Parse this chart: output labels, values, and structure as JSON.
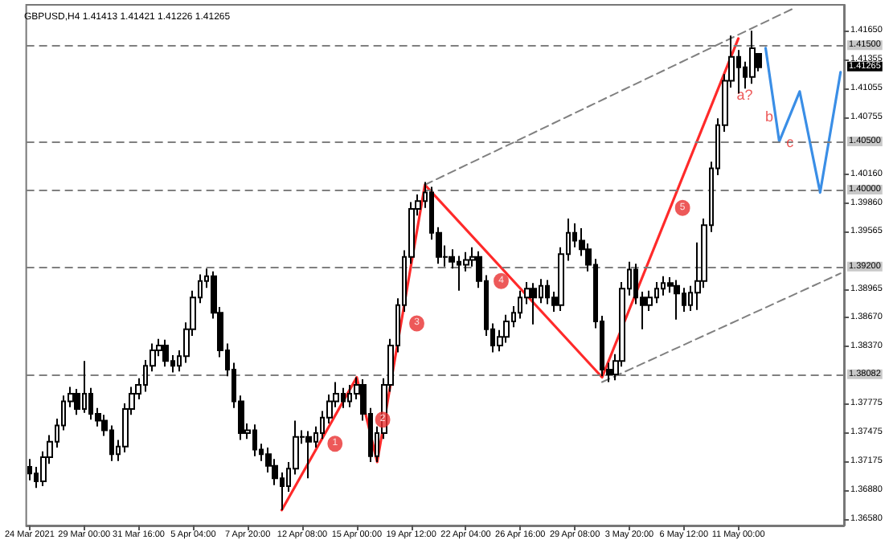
{
  "chart_data": {
    "type": "candlestick",
    "title": "GBPUSD,H4 1.41413 1.41421 1.41226 1.41265",
    "categories": [
      "24 Mar 2021",
      null,
      null,
      null,
      null,
      null,
      null,
      null,
      "29 Mar 00:00",
      null,
      null,
      null,
      null,
      null,
      null,
      null,
      "31 Mar 16:00",
      null,
      null,
      null,
      null,
      null,
      null,
      null,
      "5 Apr 04:00",
      null,
      null,
      null,
      null,
      null,
      null,
      null,
      "7 Apr 20:00",
      null,
      null,
      null,
      null,
      null,
      null,
      null,
      "12 Apr 08:00",
      null,
      null,
      null,
      null,
      null,
      null,
      null,
      "15 Apr 00:00",
      null,
      null,
      null,
      null,
      null,
      null,
      null,
      "19 Apr 12:00",
      null,
      null,
      null,
      null,
      null,
      null,
      null,
      "22 Apr 04:00",
      null,
      null,
      null,
      null,
      null,
      null,
      null,
      "26 Apr 16:00",
      null,
      null,
      null,
      null,
      null,
      null,
      null,
      "29 Apr 08:00",
      null,
      null,
      null,
      null,
      null,
      null,
      null,
      "3 May 20:00",
      null,
      null,
      null,
      null,
      null,
      null,
      null,
      "6 May 12:00",
      null,
      null,
      null,
      null,
      null,
      null,
      null,
      "11 May 00:00",
      null,
      null,
      null,
      null,
      null,
      null,
      null,
      null,
      null,
      null,
      null,
      null,
      null,
      null,
      null
    ],
    "ohlc": [
      [
        1.3712,
        1.372,
        1.3698,
        1.3705
      ],
      [
        1.3705,
        1.3712,
        1.369,
        1.3697
      ],
      [
        1.3697,
        1.3728,
        1.3692,
        1.3722
      ],
      [
        1.3722,
        1.3745,
        1.3715,
        1.3738
      ],
      [
        1.3738,
        1.3762,
        1.3732,
        1.3755
      ],
      [
        1.3755,
        1.3786,
        1.375,
        1.378
      ],
      [
        1.378,
        1.3795,
        1.3774,
        1.3788
      ],
      [
        1.3788,
        1.3793,
        1.3766,
        1.3772
      ],
      [
        1.3772,
        1.3822,
        1.3768,
        1.3788
      ],
      [
        1.3788,
        1.3794,
        1.3761,
        1.3767
      ],
      [
        1.3767,
        1.3773,
        1.3754,
        1.376
      ],
      [
        1.376,
        1.3766,
        1.3744,
        1.375
      ],
      [
        1.375,
        1.3755,
        1.3718,
        1.3725
      ],
      [
        1.3725,
        1.374,
        1.3718,
        1.3733
      ],
      [
        1.3733,
        1.3778,
        1.3727,
        1.3772
      ],
      [
        1.3772,
        1.3795,
        1.3766,
        1.3788
      ],
      [
        1.3788,
        1.3804,
        1.3782,
        1.3797
      ],
      [
        1.3797,
        1.3823,
        1.379,
        1.3817
      ],
      [
        1.3817,
        1.384,
        1.3811,
        1.3833
      ],
      [
        1.3833,
        1.3845,
        1.3827,
        1.3838
      ],
      [
        1.3838,
        1.3844,
        1.3816,
        1.3822
      ],
      [
        1.3822,
        1.3828,
        1.381,
        1.3817
      ],
      [
        1.3817,
        1.3833,
        1.3811,
        1.3827
      ],
      [
        1.3827,
        1.3862,
        1.382,
        1.3855
      ],
      [
        1.3855,
        1.3895,
        1.3848,
        1.3888
      ],
      [
        1.3888,
        1.3912,
        1.3882,
        1.3905
      ],
      [
        1.3905,
        1.3918,
        1.3898,
        1.391
      ],
      [
        1.391,
        1.3915,
        1.3866,
        1.3872
      ],
      [
        1.3872,
        1.3878,
        1.3826,
        1.3833
      ],
      [
        1.3833,
        1.384,
        1.3806,
        1.3813
      ],
      [
        1.3813,
        1.382,
        1.3773,
        1.378
      ],
      [
        1.378,
        1.3786,
        1.374,
        1.3747
      ],
      [
        1.3747,
        1.3757,
        1.3741,
        1.375
      ],
      [
        1.375,
        1.3756,
        1.3723,
        1.373
      ],
      [
        1.373,
        1.3736,
        1.3718,
        1.3725
      ],
      [
        1.3725,
        1.3732,
        1.3706,
        1.3713
      ],
      [
        1.3713,
        1.372,
        1.3693,
        1.37
      ],
      [
        1.37,
        1.3706,
        1.3667,
        1.3692
      ],
      [
        1.3692,
        1.3717,
        1.3686,
        1.371
      ],
      [
        1.371,
        1.376,
        1.3704,
        1.3743
      ],
      [
        1.3743,
        1.375,
        1.3736,
        1.3743
      ],
      [
        1.3743,
        1.3749,
        1.37,
        1.3738
      ],
      [
        1.3738,
        1.3754,
        1.3732,
        1.3747
      ],
      [
        1.3747,
        1.377,
        1.3741,
        1.3763
      ],
      [
        1.3763,
        1.3787,
        1.3757,
        1.378
      ],
      [
        1.378,
        1.38,
        1.3774,
        1.3788
      ],
      [
        1.3788,
        1.3794,
        1.3773,
        1.378
      ],
      [
        1.378,
        1.3797,
        1.3774,
        1.3788
      ],
      [
        1.3788,
        1.3805,
        1.3782,
        1.3797
      ],
      [
        1.3797,
        1.3803,
        1.376,
        1.3767
      ],
      [
        1.3767,
        1.3773,
        1.3717,
        1.3723
      ],
      [
        1.3723,
        1.3754,
        1.3717,
        1.3747
      ],
      [
        1.3747,
        1.3804,
        1.3741,
        1.3797
      ],
      [
        1.3797,
        1.3845,
        1.379,
        1.3838
      ],
      [
        1.3838,
        1.3887,
        1.3831,
        1.388
      ],
      [
        1.388,
        1.3937,
        1.3873,
        1.393
      ],
      [
        1.393,
        1.3987,
        1.3923,
        1.398
      ],
      [
        1.398,
        1.3995,
        1.3973,
        1.3988
      ],
      [
        1.3988,
        1.4008,
        1.3981,
        1.3997
      ],
      [
        1.3997,
        1.4003,
        1.3948,
        1.3955
      ],
      [
        1.3955,
        1.3961,
        1.3923,
        1.393
      ],
      [
        1.393,
        1.3942,
        1.392,
        1.393
      ],
      [
        1.393,
        1.3938,
        1.3918,
        1.3925
      ],
      [
        1.3925,
        1.3931,
        1.3895,
        1.3922
      ],
      [
        1.3922,
        1.3935,
        1.3915,
        1.3927
      ],
      [
        1.3927,
        1.394,
        1.392,
        1.393
      ],
      [
        1.393,
        1.3936,
        1.3898,
        1.3905
      ],
      [
        1.3905,
        1.3911,
        1.3848,
        1.3855
      ],
      [
        1.3855,
        1.3861,
        1.3831,
        1.3838
      ],
      [
        1.3838,
        1.3854,
        1.3832,
        1.3847
      ],
      [
        1.3847,
        1.387,
        1.3841,
        1.3863
      ],
      [
        1.3863,
        1.3879,
        1.3857,
        1.3872
      ],
      [
        1.3872,
        1.3895,
        1.3866,
        1.3888
      ],
      [
        1.3888,
        1.3904,
        1.3881,
        1.3897
      ],
      [
        1.3897,
        1.3903,
        1.386,
        1.3888
      ],
      [
        1.3888,
        1.3907,
        1.3882,
        1.39
      ],
      [
        1.39,
        1.3906,
        1.3881,
        1.3888
      ],
      [
        1.3888,
        1.3894,
        1.3873,
        1.388
      ],
      [
        1.388,
        1.394,
        1.3874,
        1.3933
      ],
      [
        1.3933,
        1.397,
        1.3926,
        1.3955
      ],
      [
        1.3955,
        1.3965,
        1.394,
        1.3947
      ],
      [
        1.3947,
        1.396,
        1.3931,
        1.3938
      ],
      [
        1.3938,
        1.3944,
        1.3915,
        1.3922
      ],
      [
        1.3922,
        1.3928,
        1.3856,
        1.3863
      ],
      [
        1.3863,
        1.3869,
        1.3806,
        1.3813
      ],
      [
        1.3813,
        1.382,
        1.38,
        1.3808
      ],
      [
        1.3808,
        1.3829,
        1.3802,
        1.3822
      ],
      [
        1.3822,
        1.3904,
        1.3816,
        1.3897
      ],
      [
        1.3897,
        1.3925,
        1.389,
        1.3917
      ],
      [
        1.3917,
        1.3923,
        1.3881,
        1.3888
      ],
      [
        1.3888,
        1.3894,
        1.3855,
        1.388
      ],
      [
        1.388,
        1.3895,
        1.3874,
        1.3888
      ],
      [
        1.3888,
        1.3904,
        1.3882,
        1.3897
      ],
      [
        1.3897,
        1.391,
        1.389,
        1.3903
      ],
      [
        1.3903,
        1.3909,
        1.3893,
        1.39
      ],
      [
        1.39,
        1.3906,
        1.3865,
        1.3892
      ],
      [
        1.3892,
        1.3898,
        1.3873,
        1.388
      ],
      [
        1.388,
        1.39,
        1.3874,
        1.3893
      ],
      [
        1.3893,
        1.3945,
        1.3875,
        1.3905
      ],
      [
        1.3905,
        1.397,
        1.3898,
        1.3963
      ],
      [
        1.3963,
        1.4029,
        1.3956,
        1.4022
      ],
      [
        1.4022,
        1.4074,
        1.4015,
        1.4067
      ],
      [
        1.4067,
        1.412,
        1.406,
        1.4113
      ],
      [
        1.4113,
        1.416,
        1.4106,
        1.4138
      ],
      [
        1.4138,
        1.4145,
        1.41,
        1.4127
      ],
      [
        1.4127,
        1.4133,
        1.4105,
        1.4117
      ],
      [
        1.4117,
        1.4165,
        1.411,
        1.4147
      ],
      [
        1.4141,
        1.4142,
        1.4123,
        1.4127
      ],
      null,
      null,
      null,
      null,
      null,
      null,
      null,
      null,
      null,
      null,
      null,
      null
    ],
    "series": [
      {
        "type": "line",
        "color": "#ff2a2a",
        "line_style": "solid",
        "values": [
          null,
          null,
          null,
          null,
          null,
          null,
          null,
          null,
          null,
          null,
          null,
          null,
          null,
          null,
          null,
          null,
          null,
          null,
          null,
          null,
          null,
          null,
          null,
          null,
          null,
          null,
          null,
          null,
          null,
          null,
          null,
          null,
          null,
          null,
          null,
          null,
          null,
          1.3667,
          null,
          null,
          null,
          null,
          null,
          null,
          null,
          null,
          null,
          null,
          1.3805,
          null,
          null,
          1.3717,
          null,
          null,
          null,
          null,
          null,
          null,
          1.4005,
          null,
          null,
          null,
          null,
          null,
          null,
          null,
          null,
          null,
          null,
          null,
          null,
          null,
          null,
          null,
          null,
          null,
          null,
          null,
          null,
          null,
          null,
          null,
          null,
          null,
          1.3805,
          null,
          null,
          null,
          null,
          null,
          null,
          null,
          null,
          null,
          null,
          null,
          null,
          null,
          null,
          null,
          null,
          null,
          null,
          null,
          1.4157,
          null,
          null,
          null,
          null,
          null,
          null,
          null,
          null,
          null,
          null,
          null,
          null,
          null,
          null,
          null
        ]
      },
      {
        "type": "line",
        "color": "#808080",
        "line_style": "dashed",
        "values": [
          null,
          null,
          null,
          null,
          null,
          null,
          null,
          null,
          null,
          null,
          null,
          null,
          null,
          null,
          null,
          null,
          null,
          null,
          null,
          null,
          null,
          null,
          null,
          null,
          null,
          null,
          null,
          null,
          null,
          null,
          null,
          null,
          null,
          null,
          null,
          null,
          null,
          null,
          null,
          null,
          null,
          null,
          null,
          null,
          null,
          null,
          null,
          null,
          null,
          null,
          null,
          null,
          null,
          null,
          null,
          null,
          null,
          null,
          1.4005,
          null,
          null,
          null,
          null,
          null,
          null,
          null,
          null,
          null,
          null,
          null,
          null,
          null,
          null,
          null,
          null,
          null,
          null,
          null,
          null,
          null,
          null,
          null,
          null,
          null,
          null,
          null,
          null,
          null,
          null,
          null,
          null,
          null,
          null,
          null,
          null,
          null,
          null,
          null,
          null,
          null,
          null,
          null,
          null,
          null,
          null,
          null,
          null,
          null,
          null,
          null,
          null,
          null,
          1.4188,
          null,
          null,
          null,
          null,
          null,
          null,
          null
        ]
      },
      {
        "type": "line",
        "color": "#808080",
        "line_style": "dashed",
        "values": [
          null,
          null,
          null,
          null,
          null,
          null,
          null,
          null,
          null,
          null,
          null,
          null,
          null,
          null,
          null,
          null,
          null,
          null,
          null,
          null,
          null,
          null,
          null,
          null,
          null,
          null,
          null,
          null,
          null,
          null,
          null,
          null,
          null,
          null,
          null,
          null,
          null,
          null,
          null,
          null,
          null,
          null,
          null,
          null,
          null,
          null,
          null,
          null,
          null,
          null,
          null,
          null,
          null,
          null,
          null,
          null,
          null,
          null,
          null,
          null,
          null,
          null,
          null,
          null,
          null,
          null,
          null,
          null,
          null,
          null,
          null,
          null,
          null,
          null,
          null,
          null,
          null,
          null,
          null,
          null,
          null,
          null,
          null,
          null,
          1.38,
          null,
          null,
          null,
          null,
          null,
          null,
          null,
          null,
          null,
          null,
          null,
          null,
          null,
          null,
          null,
          null,
          null,
          null,
          null,
          null,
          null,
          null,
          null,
          null,
          null,
          null,
          null,
          null,
          null,
          null,
          null,
          null,
          null,
          null,
          1.3913
        ]
      },
      {
        "type": "line",
        "color": "#3a8ee6",
        "line_style": "solid",
        "values": [
          null,
          null,
          null,
          null,
          null,
          null,
          null,
          null,
          null,
          null,
          null,
          null,
          null,
          null,
          null,
          null,
          null,
          null,
          null,
          null,
          null,
          null,
          null,
          null,
          null,
          null,
          null,
          null,
          null,
          null,
          null,
          null,
          null,
          null,
          null,
          null,
          null,
          null,
          null,
          null,
          null,
          null,
          null,
          null,
          null,
          null,
          null,
          null,
          null,
          null,
          null,
          null,
          null,
          null,
          null,
          null,
          null,
          null,
          null,
          null,
          null,
          null,
          null,
          null,
          null,
          null,
          null,
          null,
          null,
          null,
          null,
          null,
          null,
          null,
          null,
          null,
          null,
          null,
          null,
          null,
          null,
          null,
          null,
          null,
          null,
          null,
          null,
          null,
          null,
          null,
          null,
          null,
          null,
          null,
          null,
          null,
          null,
          null,
          null,
          null,
          null,
          null,
          null,
          null,
          null,
          null,
          null,
          null,
          1.4147,
          null,
          1.405,
          null,
          null,
          1.4102,
          null,
          null,
          1.3997,
          null,
          null,
          1.4122
        ]
      }
    ],
    "ylim": [
      1.3651,
      1.4192
    ],
    "yticks": [
      {
        "value": 1.3658,
        "label": "1.36580"
      },
      {
        "value": 1.3688,
        "label": "1.36880"
      },
      {
        "value": 1.37175,
        "label": "1.37175"
      },
      {
        "value": 1.37475,
        "label": "1.37475"
      },
      {
        "value": 1.37775,
        "label": "1.37775"
      },
      {
        "value": 1.3837,
        "label": "1.38370"
      },
      {
        "value": 1.3867,
        "label": "1.38670"
      },
      {
        "value": 1.38965,
        "label": "1.38965"
      },
      {
        "value": 1.39565,
        "label": "1.39565"
      },
      {
        "value": 1.3986,
        "label": "1.39860"
      },
      {
        "value": 1.4016,
        "label": "1.40160"
      },
      {
        "value": 1.40755,
        "label": "1.40755"
      },
      {
        "value": 1.41055,
        "label": "1.41055"
      },
      {
        "value": 1.41355,
        "label": "1.41355"
      },
      {
        "value": 1.4165,
        "label": "1.41650"
      }
    ],
    "ref_lines": [
      {
        "axis": "y",
        "value": 1.415,
        "label": "1.41500",
        "line_style": "dashed",
        "color": "#808080"
      },
      {
        "axis": "y",
        "value": 1.405,
        "label": "1.40500",
        "line_style": "dashed",
        "color": "#808080"
      },
      {
        "axis": "y",
        "value": 1.4,
        "label": "1.40000",
        "line_style": "dashed",
        "color": "#808080"
      },
      {
        "axis": "y",
        "value": 1.392,
        "label": "1.39200",
        "line_style": "dashed",
        "color": "#808080"
      },
      {
        "axis": "y",
        "value": 1.38082,
        "label": "1.38082",
        "line_style": "dashed",
        "color": "#808080"
      }
    ],
    "annotations": [
      "1.41265",
      "1",
      "2",
      "3",
      "4",
      "5",
      "a?",
      "b",
      "c"
    ],
    "marker": "none",
    "grid": false
  }
}
